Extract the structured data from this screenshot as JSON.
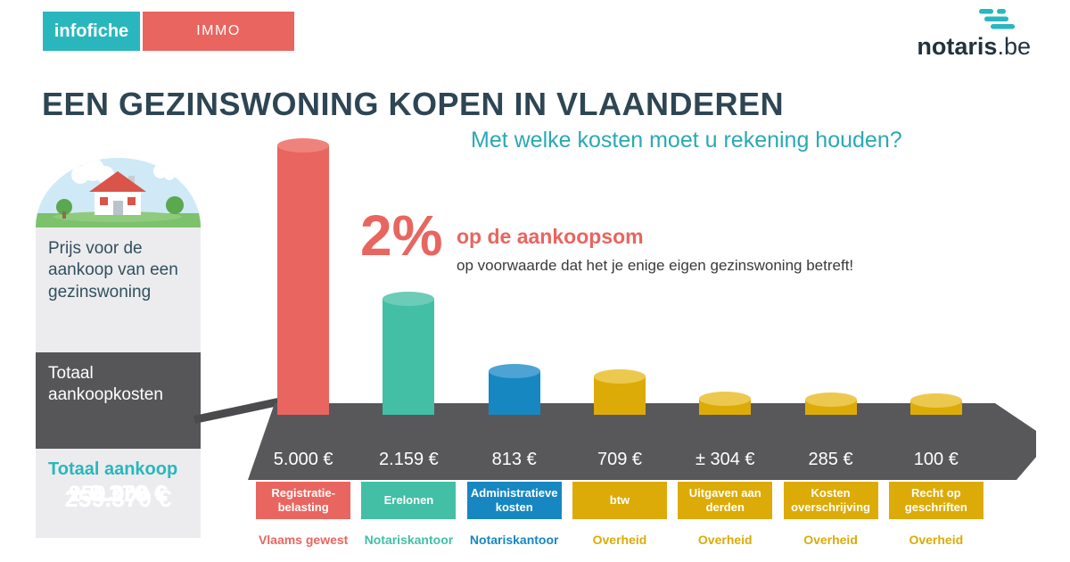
{
  "colors": {
    "teal": "#29b7bd",
    "coral": "#e9655f",
    "navy": "#2e4654",
    "gold": "#dcab07",
    "blue": "#1787c2",
    "teal_green": "#42bfa5",
    "slab_gray": "#58585a",
    "panel_gray": "#ececee",
    "dark_gray": "#565659"
  },
  "header": {
    "badge_primary": "infofiche",
    "badge_secondary": "IMMO",
    "logo_name": "notaris",
    "logo_tld": ".be"
  },
  "title": "EEN GEZINSWONING KOPEN IN VLAANDEREN",
  "subtitle": "Met welke kosten moet u rekening houden?",
  "summary_panel": {
    "price_label": "Prijs voor de aankoop van een gezinswoning",
    "price_value": "250.000 €",
    "costs_label": "Totaal aankoopkosten",
    "costs_value": "+ 9.370 €",
    "total_label": "Totaal aankoop",
    "total_value": "259.370 €"
  },
  "annotation": {
    "percentage": "2%",
    "highlight": "op de aankoopsom",
    "condition": "op voorwaarde dat het je enige eigen gezinswoning betreft!"
  },
  "chart_data": {
    "type": "bar",
    "title": "EEN GEZINSWONING KOPEN IN VLAANDEREN",
    "subtitle": "Met welke kosten moet u rekening houden?",
    "unit": "EUR",
    "max_value": 5000,
    "categories": [
      "Registratiebelasting",
      "Erelonen",
      "Administratieve kosten",
      "btw",
      "Uitgaven aan derden",
      "Kosten overschrijving",
      "Recht op geschriften"
    ],
    "values": [
      5000,
      2159,
      813,
      709,
      304,
      285,
      100
    ],
    "items": [
      {
        "value": 5000,
        "value_label": "5.000 €",
        "label": "Registratie-\nbelasting",
        "category": "Registratiebelasting",
        "source": "Vlaams gewest",
        "color": "#e9655f",
        "cap_color": "#ee837d"
      },
      {
        "value": 2159,
        "value_label": "2.159 €",
        "label": "Erelonen",
        "category": "Erelonen",
        "source": "Notariskantoor",
        "color": "#42bfa5",
        "cap_color": "#6cccb8"
      },
      {
        "value": 813,
        "value_label": "813 €",
        "label": "Administratieve\nkosten",
        "category": "Administratieve kosten",
        "source": "Notariskantoor",
        "color": "#1787c2",
        "cap_color": "#4da3d3"
      },
      {
        "value": 709,
        "value_label": "709 €",
        "label": "btw",
        "category": "btw",
        "source": "Overheid",
        "color": "#dcab07",
        "cap_color": "#ecc94e"
      },
      {
        "value": 304,
        "value_label": "± 304 €",
        "label": "Uitgaven aan\nderden",
        "category": "Uitgaven aan derden",
        "source": "Overheid",
        "color": "#dcab07",
        "cap_color": "#ecc94e"
      },
      {
        "value": 285,
        "value_label": "285 €",
        "label": "Kosten\noverschrijving",
        "category": "Kosten overschrijving",
        "source": "Overheid",
        "color": "#dcab07",
        "cap_color": "#ecc94e"
      },
      {
        "value": 100,
        "value_label": "100 €",
        "label": "Recht op\ngeschriften",
        "category": "Recht op geschriften",
        "source": "Overheid",
        "color": "#dcab07",
        "cap_color": "#ecc94e"
      }
    ]
  }
}
